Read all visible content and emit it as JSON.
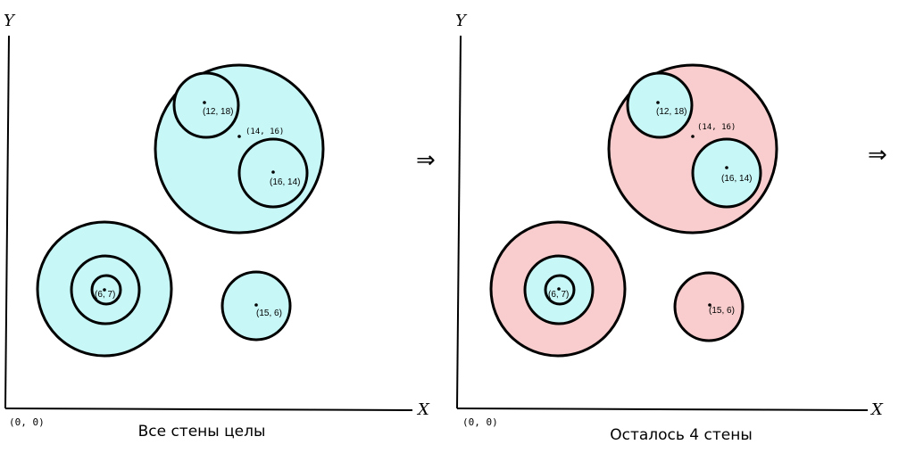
{
  "colors": {
    "intact": "#c8f7f7",
    "destroyed": "#f9cdcd",
    "stroke": "#000000"
  },
  "arrow_glyph": "⇒",
  "panels": [
    {
      "y_label": "Y",
      "x_label": "X",
      "origin_label": "(0, 0)",
      "caption": "Все стены целы",
      "walls": [
        {
          "center": "(14, 16)",
          "state": "intact"
        },
        {
          "center": "(12, 18)",
          "state": "intact"
        },
        {
          "center": "(16, 14)",
          "state": "intact"
        },
        {
          "center": "(6, 7)",
          "ring": "outer",
          "state": "intact"
        },
        {
          "center": "(6, 7)",
          "ring": "middle",
          "state": "intact"
        },
        {
          "center": "(6, 7)",
          "ring": "inner",
          "state": "intact"
        },
        {
          "center": "(15, 6)",
          "state": "intact"
        }
      ],
      "points": [
        "(12, 18)",
        "(14,  16)",
        "(16, 14)",
        "(6, 7)",
        "(15, 6)"
      ]
    },
    {
      "y_label": "Y",
      "x_label": "X",
      "origin_label": "(0, 0)",
      "caption": "Осталось 4 стены",
      "walls": [
        {
          "center": "(14, 16)",
          "state": "destroyed"
        },
        {
          "center": "(12, 18)",
          "state": "intact"
        },
        {
          "center": "(16, 14)",
          "state": "intact"
        },
        {
          "center": "(6, 7)",
          "ring": "outer",
          "state": "destroyed"
        },
        {
          "center": "(6, 7)",
          "ring": "middle",
          "state": "intact"
        },
        {
          "center": "(6, 7)",
          "ring": "inner",
          "state": "intact"
        },
        {
          "center": "(15, 6)",
          "state": "destroyed"
        }
      ],
      "points": [
        "(12, 18)",
        "(14,  16)",
        "(16, 14)",
        "(6, 7)",
        "(15, 6)"
      ]
    }
  ]
}
